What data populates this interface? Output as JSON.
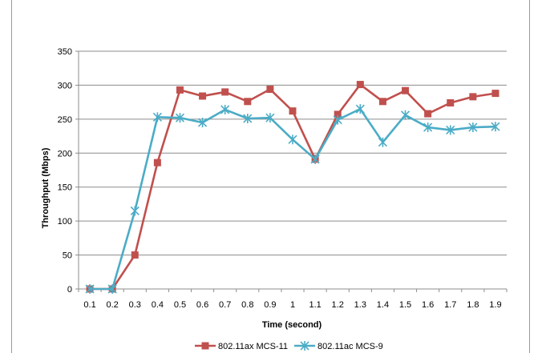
{
  "chart_data": {
    "type": "line",
    "title": "",
    "xlabel": "Time  (second)",
    "ylabel": "Throughput  (Mbps)",
    "ylim": [
      0,
      350
    ],
    "yticks": [
      "0",
      "50",
      "100",
      "150",
      "200",
      "250",
      "300",
      "350"
    ],
    "categories": [
      "0.1",
      "0.2",
      "0.3",
      "0.4",
      "0.5",
      "0.6",
      "0.7",
      "0.8",
      "0.9",
      "1",
      "1.1",
      "1.2",
      "1.3",
      "1.4",
      "1.5",
      "1.6",
      "1.7",
      "1.8",
      "1.9"
    ],
    "grid": true,
    "legend_position": "bottom",
    "series": [
      {
        "name": "802.11ax MCS-11",
        "color": "#C0504D",
        "marker": "square",
        "values": [
          0,
          0,
          50,
          186,
          293,
          284,
          290,
          276,
          294,
          262,
          191,
          257,
          301,
          276,
          292,
          258,
          274,
          283,
          288
        ]
      },
      {
        "name": "802.11ac MCS-9",
        "color": "#4BACC6",
        "marker": "asterisk",
        "values": [
          0,
          0,
          115,
          253,
          252,
          245,
          264,
          251,
          252,
          220,
          191,
          249,
          265,
          216,
          256,
          238,
          234,
          238,
          239
        ]
      }
    ]
  }
}
